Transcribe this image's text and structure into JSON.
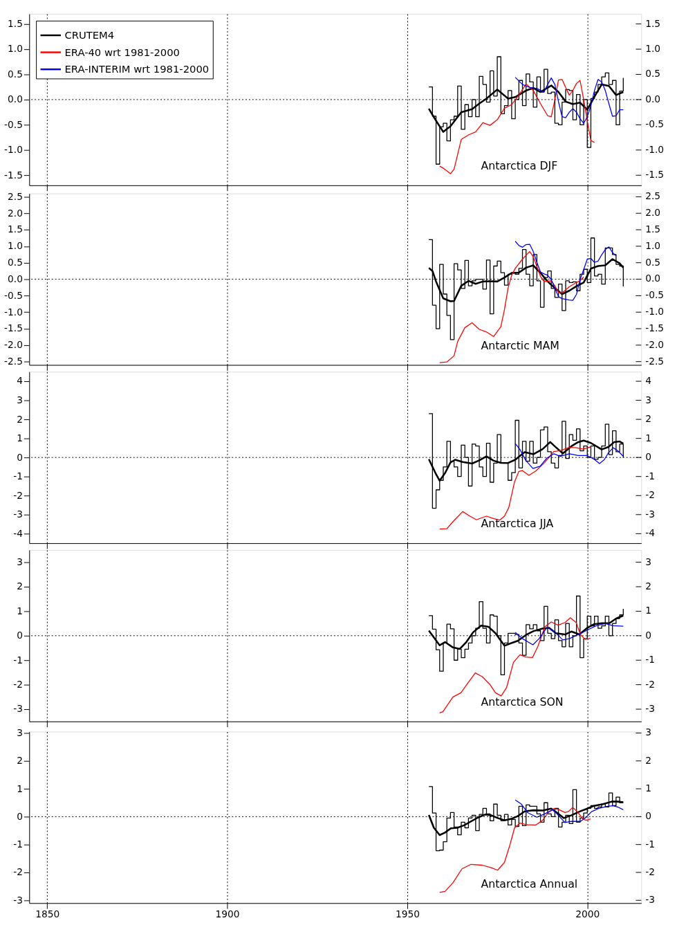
{
  "chart_data": [
    {
      "type": "line",
      "xlim": [
        1845,
        2015
      ],
      "xticks": [
        1850,
        1900,
        1950,
        2000
      ],
      "ylim": [
        -1.7,
        1.7
      ],
      "yticks": [
        -1.5,
        {
          "value": -1,
          "label": "-1.0"
        },
        -0.5,
        {
          "value": 0,
          "label": "0.0"
        },
        0.5,
        {
          "value": 1,
          "label": "1.0"
        },
        1.5
      ],
      "y2lim": [
        -1.7,
        1.7
      ],
      "y2ticks": [
        -1.5,
        {
          "value": -1,
          "label": "-1.0"
        },
        -0.5,
        {
          "value": 0,
          "label": "0.0"
        },
        0.5,
        {
          "value": 1,
          "label": "1.0"
        },
        1.5
      ],
      "tick_labels": "y",
      "grid": "x",
      "legend": false,
      "ref_lines": [
        {
          "axis": "y",
          "value": 0,
          "line_style": "dotted"
        }
      ],
      "annotations": [
        "Antarctica DJF"
      ],
      "x": [
        1956,
        1957,
        1958,
        1959,
        1960,
        1961,
        1962,
        1963,
        1964,
        1965,
        1966,
        1967,
        1968,
        1969,
        1970,
        1971,
        1972,
        1973,
        1974,
        1975,
        1976,
        1977,
        1978,
        1979,
        1980,
        1981,
        1982,
        1983,
        1984,
        1985,
        1986,
        1987,
        1988,
        1989,
        1990,
        1991,
        1992,
        1993,
        1994,
        1995,
        1996,
        1997,
        1998,
        1999,
        2000,
        2001,
        2002,
        2003,
        2004,
        2005,
        2006,
        2007,
        2008,
        2009,
        2010
      ],
      "series": [
        {
          "type": "step",
          "color": "#000000",
          "values": [
            0.25,
            -0.33,
            -1.28,
            -0.54,
            -0.47,
            -0.82,
            -0.4,
            -0.33,
            0.27,
            -0.59,
            -0.1,
            -0.34,
            0.0,
            -0.34,
            0.46,
            0.3,
            -0.05,
            0.57,
            0.07,
            0.85,
            -0.28,
            -0.12,
            0.18,
            -0.38,
            0.0,
            0.38,
            -0.12,
            0.51,
            0.35,
            -0.15,
            0.45,
            0.15,
            0.6,
            0.12,
            0.15,
            -0.47,
            -0.5,
            -0.05,
            0.2,
            0.18,
            -0.4,
            0.1,
            -0.5,
            0.0,
            -0.95,
            0.02,
            0.15,
            0.3,
            0.45,
            0.53,
            0.3,
            0.38,
            -0.5,
            0.17,
            0.43
          ]
        },
        {
          "type": "line",
          "color": "#000000",
          "x": [
            1956,
            1958,
            1960,
            1962,
            1965,
            1968,
            1970,
            1972,
            1975,
            1978,
            1980,
            1983,
            1985,
            1987,
            1990,
            1992,
            1994,
            1996,
            1998,
            2000,
            2002,
            2004,
            2006,
            2008,
            2010
          ],
          "values": [
            -0.18,
            -0.42,
            -0.64,
            -0.53,
            -0.25,
            -0.19,
            -0.08,
            0.02,
            0.2,
            0.02,
            0.05,
            0.18,
            0.23,
            0.15,
            0.28,
            0.15,
            -0.04,
            -0.09,
            -0.06,
            -0.2,
            0.06,
            0.3,
            0.27,
            0.09,
            0.15
          ]
        },
        {
          "type": "line",
          "color": "#ff0000",
          "x": [
            1959,
            1960,
            1962,
            1963,
            1965,
            1967,
            1969,
            1971,
            1973,
            1975,
            1977,
            1979,
            1981,
            1983,
            1985,
            1987,
            1989,
            1990,
            1991,
            1992,
            1993,
            1994,
            1995,
            1996,
            1997,
            1998,
            1999,
            2000,
            2001,
            2002
          ],
          "values": [
            -1.32,
            -1.36,
            -1.47,
            -1.38,
            -0.79,
            -0.7,
            -0.64,
            -0.46,
            -0.51,
            -0.4,
            -0.17,
            -0.1,
            0.09,
            0.31,
            0.18,
            -0.08,
            -0.32,
            -0.34,
            0.0,
            0.39,
            0.4,
            0.24,
            0.09,
            0.18,
            0.32,
            0.38,
            0.0,
            -0.42,
            -0.81,
            -0.85
          ]
        },
        {
          "type": "line",
          "color": "#0000ff",
          "x": [
            1980,
            1982,
            1984,
            1986,
            1988,
            1989,
            1990,
            1991,
            1992,
            1993,
            1994,
            1995,
            1996,
            1997,
            1998,
            1999,
            2000,
            2001,
            2002,
            2003,
            2004,
            2005,
            2006,
            2007,
            2008,
            2009,
            2010
          ],
          "values": [
            0.44,
            0.3,
            0.24,
            0.22,
            0.15,
            0.3,
            0.43,
            0.3,
            -0.04,
            -0.34,
            -0.36,
            -0.25,
            -0.18,
            -0.25,
            -0.38,
            -0.47,
            -0.34,
            -0.12,
            0.18,
            0.4,
            0.35,
            0.18,
            -0.08,
            -0.33,
            -0.32,
            -0.2,
            -0.2
          ]
        }
      ]
    },
    {
      "type": "line",
      "xlim": [
        1845,
        2015
      ],
      "xticks": [
        1850,
        1900,
        1950,
        2000
      ],
      "ylim": [
        -2.6,
        2.6
      ],
      "yticks": [
        -2.5,
        {
          "value": -2,
          "label": "-2.0"
        },
        -1.5,
        {
          "value": -1,
          "label": "-1.0"
        },
        -0.5,
        {
          "value": 0,
          "label": "0.0"
        },
        0.5,
        {
          "value": 1,
          "label": "1.0"
        },
        1.5,
        {
          "value": 2,
          "label": "2.0"
        },
        2.5
      ],
      "y2lim": [
        -2.6,
        2.6
      ],
      "y2ticks": [
        -2.5,
        {
          "value": -2,
          "label": "-2.0"
        },
        -1.5,
        {
          "value": -1,
          "label": "-1.0"
        },
        -0.5,
        {
          "value": 0,
          "label": "0.0"
        },
        0.5,
        {
          "value": 1,
          "label": "1.0"
        },
        1.5,
        {
          "value": 2,
          "label": "2.0"
        },
        2.5
      ],
      "tick_labels": "y",
      "grid": "x",
      "legend": false,
      "ref_lines": [
        {
          "axis": "y",
          "value": 0,
          "line_style": "dotted"
        }
      ],
      "annotations": [
        "Antarctic MAM"
      ],
      "x": [
        1956,
        1957,
        1958,
        1959,
        1960,
        1961,
        1962,
        1963,
        1964,
        1965,
        1966,
        1967,
        1968,
        1969,
        1970,
        1971,
        1972,
        1973,
        1974,
        1975,
        1976,
        1977,
        1978,
        1979,
        1980,
        1981,
        1982,
        1983,
        1984,
        1985,
        1986,
        1987,
        1988,
        1989,
        1990,
        1991,
        1992,
        1993,
        1994,
        1995,
        1996,
        1997,
        1998,
        1999,
        2000,
        2001,
        2002,
        2003,
        2004,
        2005,
        2006,
        2007,
        2008,
        2009,
        2010
      ],
      "series": [
        {
          "type": "step",
          "color": "#000000",
          "values": [
            1.2,
            -0.79,
            -1.5,
            0.45,
            -0.45,
            -1.1,
            -1.83,
            0.47,
            0.28,
            -0.28,
            0.57,
            -0.2,
            -0.05,
            0.0,
            0.0,
            -0.3,
            0.58,
            -1.05,
            0.4,
            0.55,
            0.2,
            -0.18,
            0.15,
            0.2,
            0.15,
            0.33,
            0.9,
            0.15,
            -0.2,
            0.75,
            -0.05,
            -0.85,
            0.05,
            0.25,
            -0.28,
            -0.55,
            -0.15,
            -0.95,
            -0.05,
            -0.1,
            -0.08,
            -0.35,
            0.15,
            0.3,
            -0.1,
            1.25,
            0.1,
            0.15,
            -0.15,
            0.95,
            0.95,
            0.75,
            0.45,
            0.4,
            -0.22
          ]
        },
        {
          "type": "line",
          "color": "#000000",
          "x": [
            1956,
            1957,
            1958,
            1960,
            1962,
            1963,
            1965,
            1967,
            1969,
            1971,
            1973,
            1975,
            1977,
            1979,
            1981,
            1983,
            1985,
            1987,
            1989,
            1991,
            1993,
            1995,
            1997,
            1999,
            2001,
            2003,
            2005,
            2007,
            2009,
            2010
          ],
          "values": [
            0.34,
            0.25,
            -0.07,
            -0.58,
            -0.67,
            -0.66,
            -0.2,
            -0.05,
            -0.14,
            -0.07,
            -0.06,
            -0.07,
            0.05,
            0.19,
            0.2,
            0.35,
            0.42,
            0.19,
            -0.07,
            -0.27,
            -0.45,
            -0.35,
            -0.21,
            -0.1,
            0.32,
            0.4,
            0.42,
            0.61,
            0.48,
            0.35
          ]
        },
        {
          "type": "line",
          "color": "#ff0000",
          "x": [
            1959,
            1961,
            1963,
            1964,
            1966,
            1968,
            1970,
            1972,
            1974,
            1976,
            1977,
            1978,
            1979,
            1980,
            1982,
            1984,
            1985,
            1987,
            1988,
            1990,
            1991,
            1992,
            1993,
            1995,
            1997,
            1998,
            1999
          ],
          "values": [
            -2.53,
            -2.51,
            -2.32,
            -1.89,
            -1.47,
            -1.32,
            -1.52,
            -1.6,
            -1.74,
            -1.44,
            -0.92,
            -0.27,
            0.12,
            0.33,
            0.61,
            0.84,
            0.68,
            0.09,
            -0.07,
            -0.05,
            -0.2,
            -0.4,
            -0.42,
            -0.23,
            -0.1,
            -0.04,
            0.07
          ]
        },
        {
          "type": "line",
          "color": "#0000ff",
          "x": [
            1980,
            1981,
            1982,
            1983,
            1984,
            1985,
            1986,
            1987,
            1988,
            1989,
            1990,
            1991,
            1992,
            1993,
            1995,
            1996,
            1997,
            1998,
            1999,
            2000,
            2001,
            2002,
            2003,
            2004,
            2005,
            2006,
            2007,
            2008
          ],
          "values": [
            1.15,
            1.02,
            0.97,
            1.05,
            1.06,
            0.84,
            0.51,
            0.22,
            0.16,
            0.12,
            -0.01,
            -0.27,
            -0.53,
            -0.59,
            -0.63,
            -0.64,
            -0.46,
            -0.01,
            0.29,
            0.61,
            0.63,
            0.51,
            0.55,
            0.74,
            0.9,
            0.98,
            0.81,
            0.71
          ]
        }
      ]
    },
    {
      "type": "line",
      "xlim": [
        1845,
        2015
      ],
      "xticks": [
        1850,
        1900,
        1950,
        2000
      ],
      "ylim": [
        -4.5,
        4.5
      ],
      "yticks": [
        -4,
        -3,
        -2,
        -1,
        0,
        1,
        2,
        3,
        4
      ],
      "y2lim": [
        -4.5,
        4.5
      ],
      "y2ticks": [
        -4,
        -3,
        -2,
        -1,
        0,
        1,
        2,
        3,
        4
      ],
      "tick_labels": "y",
      "grid": "x",
      "legend": false,
      "ref_lines": [
        {
          "axis": "y",
          "value": 0,
          "line_style": "dotted"
        }
      ],
      "annotations": [
        "Antarctica JJA"
      ],
      "x": [
        1956,
        1957,
        1958,
        1959,
        1960,
        1961,
        1962,
        1963,
        1964,
        1965,
        1966,
        1967,
        1968,
        1969,
        1970,
        1971,
        1972,
        1973,
        1974,
        1975,
        1976,
        1977,
        1978,
        1979,
        1980,
        1981,
        1982,
        1983,
        1984,
        1985,
        1986,
        1987,
        1988,
        1989,
        1990,
        1991,
        1992,
        1993,
        1994,
        1995,
        1996,
        1997,
        1998,
        1999,
        2000,
        2001,
        2002,
        2003,
        2004,
        2005,
        2006,
        2007,
        2008,
        2009,
        2010
      ],
      "series": [
        {
          "type": "step",
          "color": "#000000",
          "values": [
            2.3,
            -2.67,
            -1.7,
            -1.2,
            -0.5,
            0.85,
            -0.2,
            -0.5,
            -1.0,
            0.65,
            0.0,
            -1.5,
            0.7,
            0.6,
            -0.5,
            -1.0,
            0.75,
            -1.3,
            -0.3,
            1.2,
            -0.3,
            -0.3,
            -1.2,
            -0.8,
            1.95,
            -0.55,
            0.85,
            -0.2,
            0.85,
            -0.3,
            0.0,
            1.45,
            1.6,
            0.3,
            -0.3,
            -0.55,
            0.1,
            1.9,
            -0.05,
            1.2,
            0.9,
            1.5,
            0.35,
            0.6,
            0.0,
            0.6,
            -0.1,
            0.0,
            0.6,
            1.75,
            0.15,
            1.4,
            0.3,
            0.7,
            0.0
          ]
        },
        {
          "type": "line",
          "color": "#000000",
          "x": [
            1956,
            1958,
            1959,
            1960.5,
            1962,
            1963.3,
            1965.4,
            1968,
            1970,
            1972,
            1974,
            1976,
            1978,
            1980,
            1982.6,
            1985,
            1987.6,
            1989.7,
            1991.3,
            1993.2,
            1995.6,
            1997.5,
            1999,
            2001,
            2004,
            2005.9,
            2007.5,
            2009,
            2010
          ],
          "values": [
            -0.09,
            -0.88,
            -1.22,
            -0.82,
            -0.26,
            -0.12,
            -0.24,
            -0.32,
            -0.15,
            0.06,
            -0.17,
            -0.28,
            -0.29,
            -0.12,
            0.28,
            0.17,
            0.44,
            0.81,
            0.53,
            0.21,
            0.59,
            0.81,
            0.89,
            0.76,
            0.42,
            0.55,
            0.81,
            0.84,
            0.73
          ]
        },
        {
          "type": "line",
          "color": "#ff0000",
          "x": [
            1959,
            1961,
            1962.7,
            1965.4,
            1967.4,
            1969.2,
            1972,
            1973.9,
            1975.7,
            1977,
            1978.2,
            1979.8,
            1981,
            1982,
            1983.8,
            1985.7,
            1988.2,
            1990.7,
            1992.5,
            1995,
            1996.9,
            1998.8,
            2000.9
          ],
          "values": [
            -3.76,
            -3.74,
            -3.37,
            -2.84,
            -3.08,
            -3.27,
            -3.08,
            -3.2,
            -3.29,
            -3.08,
            -2.63,
            -1.28,
            -0.73,
            -0.69,
            -0.94,
            -0.71,
            -0.26,
            0.31,
            0.36,
            0.53,
            0.51,
            0.44,
            0.55
          ]
        },
        {
          "type": "line",
          "color": "#0000ff",
          "x": [
            1980,
            1981.3,
            1982.9,
            1984.9,
            1986.9,
            1988.8,
            1990.7,
            1992.5,
            1995,
            1997.5,
            2000,
            2001.9,
            2003.4,
            2004.7,
            2005.9,
            2007.2,
            2008.4,
            2010
          ],
          "values": [
            0.73,
            0.42,
            -0.15,
            -0.58,
            -0.46,
            -0.03,
            0.19,
            0.06,
            0.19,
            0.1,
            0.1,
            -0.09,
            -0.32,
            -0.12,
            0.25,
            0.51,
            0.36,
            0.06
          ]
        }
      ]
    },
    {
      "type": "line",
      "xlim": [
        1845,
        2015
      ],
      "xticks": [
        1850,
        1900,
        1950,
        2000
      ],
      "ylim": [
        -3.5,
        3.5
      ],
      "yticks": [
        -3,
        -2,
        -1,
        0,
        1,
        2,
        3
      ],
      "y2lim": [
        -3.5,
        3.5
      ],
      "y2ticks": [
        -3,
        -2,
        -1,
        0,
        1,
        2,
        3
      ],
      "tick_labels": "y",
      "grid": "x",
      "legend": "top left",
      "ref_lines": [
        {
          "axis": "y",
          "value": 0,
          "line_style": "dotted"
        }
      ],
      "annotations": [
        "Antarctica SON"
      ],
      "x": [
        1956,
        1957,
        1958,
        1959,
        1960,
        1961,
        1962,
        1963,
        1964,
        1965,
        1966,
        1967,
        1968,
        1969,
        1970,
        1971,
        1972,
        1973,
        1974,
        1975,
        1976,
        1977,
        1978,
        1979,
        1980,
        1981,
        1982,
        1983,
        1984,
        1985,
        1986,
        1987,
        1988,
        1989,
        1990,
        1991,
        1992,
        1993,
        1994,
        1995,
        1996,
        1997,
        1998,
        1999,
        2000,
        2001,
        2002,
        2003,
        2004,
        2005,
        2006,
        2007,
        2008,
        2009,
        2010
      ],
      "series": [
        {
          "type": "step",
          "color": "#000000",
          "values": [
            0.82,
            0.27,
            -0.57,
            -1.45,
            -0.3,
            0.47,
            0.28,
            -1.0,
            -0.55,
            -0.9,
            -0.55,
            -0.3,
            0.0,
            0.3,
            1.39,
            0.3,
            -0.3,
            0.85,
            0.8,
            0.0,
            -1.6,
            -0.3,
            0.1,
            0.1,
            0.05,
            -0.3,
            -0.8,
            0.45,
            0.28,
            0.45,
            0.2,
            -0.2,
            1.2,
            0.1,
            -0.12,
            0.65,
            -0.2,
            -0.45,
            0.5,
            -0.45,
            0.0,
            1.62,
            -0.9,
            -0.12,
            0.8,
            0.4,
            0.8,
            0.3,
            0.4,
            0.8,
            0.0,
            0.5,
            0.7,
            0.85,
            1.1
          ]
        },
        {
          "type": "line",
          "name": "CRUTEM4",
          "color": "#000000",
          "x": [
            1956,
            1959,
            1960.5,
            1962.7,
            1964.6,
            1966.4,
            1968.3,
            1970.5,
            1972.6,
            1974.5,
            1977,
            1978.9,
            1980.7,
            1983.2,
            1985.1,
            1987.6,
            1989.4,
            1991.3,
            1993.8,
            1995.6,
            1997.8,
            2000,
            2001.9,
            2004,
            2006.2,
            2008.1,
            2010
          ],
          "values": [
            0.21,
            -0.39,
            -0.26,
            -0.48,
            -0.54,
            -0.26,
            0.14,
            0.41,
            0.36,
            0.1,
            -0.41,
            -0.3,
            -0.21,
            0.05,
            0.19,
            0.29,
            0.32,
            0.1,
            0.05,
            0.17,
            0.05,
            0.32,
            0.47,
            0.51,
            0.52,
            0.71,
            0.82
          ]
        },
        {
          "type": "line",
          "name": "ERA-40 wrt 1981-2000",
          "color": "#ff0000",
          "x": [
            1959,
            1959.9,
            1962.7,
            1964.9,
            1966.4,
            1968.9,
            1970.8,
            1972.9,
            1974.5,
            1976.1,
            1977.6,
            1979.5,
            1981.3,
            1982.9,
            1984.8,
            1986.3,
            1988.2,
            1990,
            1991.9,
            1993.8,
            1995.3,
            1996.9,
            1998.1,
            1999.4,
            2000.9
          ],
          "values": [
            -3.15,
            -3.1,
            -2.5,
            -2.33,
            -2.02,
            -1.52,
            -1.67,
            -1.98,
            -2.33,
            -2.46,
            -2.11,
            -1.09,
            -0.78,
            -0.87,
            -0.89,
            -0.43,
            0.36,
            0.56,
            0.43,
            0.54,
            0.73,
            0.54,
            0.05,
            -0.15,
            -0.11
          ]
        },
        {
          "type": "line",
          "name": "ERA-INTERIM wrt 1981-2000",
          "color": "#0000ff",
          "x": [
            1980,
            1982,
            1984.9,
            1986.6,
            1988.8,
            1990.7,
            1993.2,
            1995,
            1997.5,
            2000,
            2002.5,
            2005,
            2007.2,
            2010
          ],
          "values": [
            0.14,
            -0.12,
            -0.37,
            -0.12,
            0.34,
            0.19,
            -0.17,
            -0.12,
            0.05,
            0.23,
            0.41,
            0.49,
            0.41,
            0.39
          ]
        }
      ]
    },
    {
      "type": "line",
      "xlim": [
        1845,
        2015
      ],
      "xticks": [
        1850,
        1900,
        1950,
        2000
      ],
      "ylim": [
        -3.1,
        3.05
      ],
      "yticks": [
        -3,
        -2,
        -1,
        0,
        1,
        2,
        3
      ],
      "y2lim": [
        -3.1,
        3.05
      ],
      "y2ticks": [
        -3,
        -2,
        -1,
        0,
        1,
        2,
        3
      ],
      "grid": "x",
      "legend": false,
      "ref_lines": [
        {
          "axis": "y",
          "value": 0,
          "line_style": "dotted"
        }
      ],
      "annotations": [
        "Antarctica Annual"
      ],
      "x": [
        1956,
        1957,
        1958,
        1959,
        1960,
        1961,
        1962,
        1963,
        1964,
        1965,
        1966,
        1967,
        1968,
        1969,
        1970,
        1971,
        1972,
        1973,
        1974,
        1975,
        1976,
        1977,
        1978,
        1979,
        1980,
        1981,
        1982,
        1983,
        1984,
        1985,
        1986,
        1987,
        1988,
        1989,
        1990,
        1991,
        1992,
        1993,
        1994,
        1995,
        1996,
        1997,
        1998,
        1999,
        2000,
        2001,
        2002,
        2003,
        2004,
        2005,
        2006,
        2007,
        2008,
        2009,
        2010
      ],
      "series": [
        {
          "type": "step",
          "color": "#000000",
          "values": [
            1.08,
            0.13,
            -1.22,
            -1.2,
            -0.9,
            -0.05,
            0.15,
            -0.37,
            -0.65,
            -0.2,
            -0.4,
            -0.05,
            0.05,
            -0.5,
            0.08,
            0.3,
            0.1,
            -0.15,
            0.45,
            0.05,
            -0.15,
            0.08,
            -0.3,
            -0.1,
            -0.35,
            0.37,
            -0.32,
            0.42,
            0.37,
            0.37,
            0.1,
            -0.2,
            0.5,
            0.1,
            0.0,
            0.3,
            -0.37,
            -0.2,
            0.05,
            -0.25,
            0.97,
            -0.2,
            -0.05,
            0.13,
            0.3,
            0.4,
            0.3,
            0.35,
            0.45,
            0.35,
            0.85,
            0.4,
            0.7,
            0.5,
            0.5
          ]
        },
        {
          "type": "line",
          "color": "#000000",
          "x": [
            1956,
            1957.4,
            1959,
            1960.5,
            1962.1,
            1963.9,
            1965.8,
            1967.7,
            1969.5,
            1971.7,
            1973.3,
            1975.1,
            1977,
            1978.9,
            1980.7,
            1982.6,
            1985.1,
            1987.6,
            1990,
            1991.6,
            1993.5,
            1995.6,
            1997.8,
            2000,
            2001.9,
            2004.4,
            2006.8,
            2008.4,
            2010
          ],
          "values": [
            0.06,
            -0.4,
            -0.66,
            -0.57,
            -0.42,
            -0.4,
            -0.31,
            -0.17,
            -0.04,
            0.08,
            0.05,
            -0.05,
            -0.13,
            -0.08,
            0.02,
            0.19,
            0.23,
            0.22,
            0.29,
            0.14,
            -0.05,
            0.05,
            0.18,
            0.29,
            0.39,
            0.45,
            0.54,
            0.54,
            0.52
          ]
        },
        {
          "type": "line",
          "color": "#ff0000",
          "x": [
            1959,
            1960.5,
            1962.7,
            1965.2,
            1967.7,
            1970.8,
            1973.3,
            1975.1,
            1977,
            1978.5,
            1979.8,
            1981.3,
            1983.2,
            1985.7,
            1987.6,
            1989.1,
            1990.7,
            1992.2,
            1993.8,
            1994.7,
            1996,
            1997.5,
            1998.8,
            1999.7,
            2000.9
          ],
          "values": [
            -2.72,
            -2.68,
            -2.37,
            -1.87,
            -1.71,
            -1.74,
            -1.83,
            -1.92,
            -1.64,
            -1.02,
            -0.4,
            -0.23,
            -0.29,
            -0.3,
            -0.13,
            0.14,
            0.29,
            0.25,
            0.15,
            0.18,
            0.33,
            0.14,
            -0.09,
            -0.13,
            -0.08
          ]
        },
        {
          "type": "line",
          "color": "#0000ff",
          "x": [
            1980,
            1981.7,
            1983.5,
            1986,
            1988.2,
            1990.4,
            1991.9,
            1993.8,
            1995.6,
            1998.1,
            1999.7,
            2001.2,
            2003.1,
            2005.6,
            2007.2,
            2008.4,
            2010
          ],
          "values": [
            0.6,
            0.45,
            0.14,
            -0.02,
            0.1,
            0.25,
            0.06,
            -0.21,
            -0.17,
            -0.17,
            -0.02,
            0.18,
            0.29,
            0.37,
            0.39,
            0.35,
            0.25
          ]
        }
      ]
    }
  ]
}
